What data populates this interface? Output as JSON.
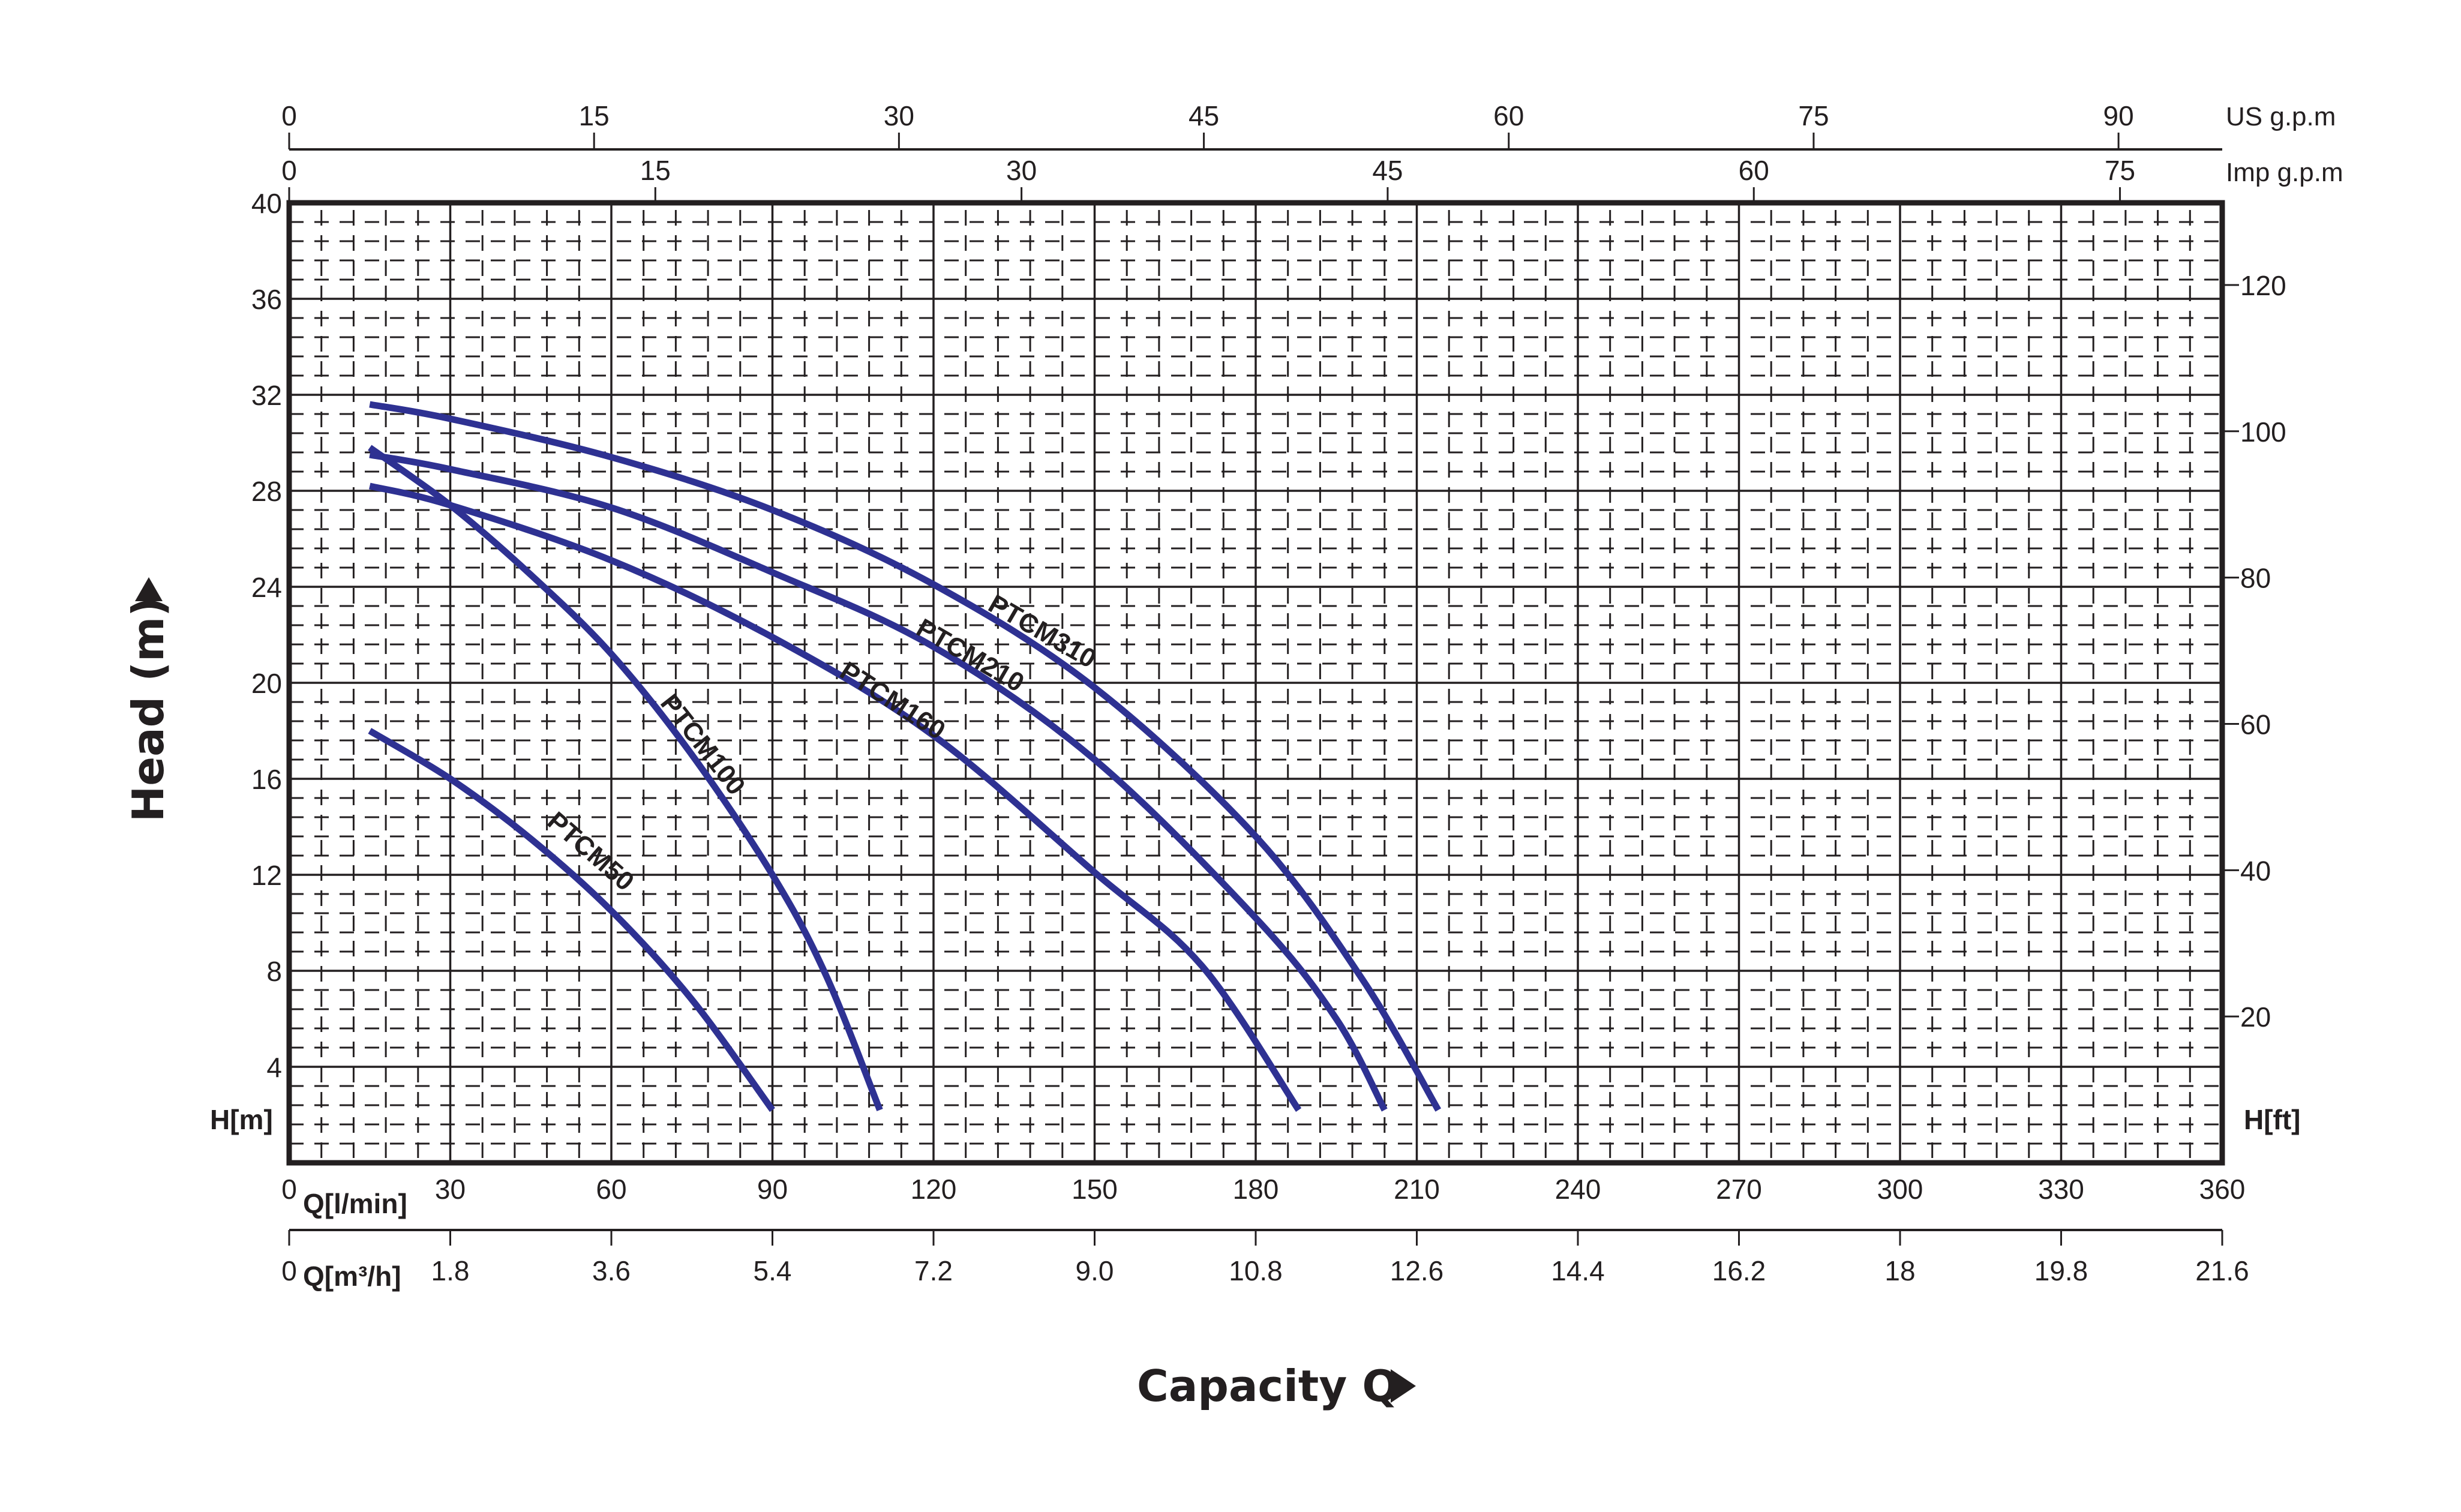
{
  "chart_data": {
    "type": "line",
    "title": "",
    "xlabel": "Capacity Q",
    "ylabel": "Head (m)",
    "x_unit_primary": "Q[l/min]",
    "x_unit_secondary": "Q[m³/h]",
    "y_unit_left": "H[m]",
    "y_unit_right": "H[ft]",
    "top_axis_1_unit": "US g.p.m",
    "top_axis_2_unit": "Imp g.p.m",
    "xlim": [
      0,
      360
    ],
    "ylim": [
      0,
      40
    ],
    "grid": true,
    "legend": "inline curve labels",
    "x_ticks_lmin": [
      "0",
      "30",
      "60",
      "90",
      "120",
      "150",
      "180",
      "210",
      "240",
      "270",
      "300",
      "330",
      "360"
    ],
    "x_ticks_m3h": [
      "0",
      "1.8",
      "3.6",
      "5.4",
      "7.2",
      "9.0",
      "10.8",
      "12.6",
      "14.4",
      "16.2",
      "18",
      "19.8",
      "21.6"
    ],
    "y_ticks_m": [
      "4",
      "8",
      "12",
      "16",
      "20",
      "24",
      "28",
      "32",
      "36",
      "40"
    ],
    "y_ticks_ft": [
      "20",
      "40",
      "60",
      "80",
      "100",
      "120"
    ],
    "top_ticks_us_gpm": [
      "0",
      "15",
      "30",
      "45",
      "60",
      "75",
      "90"
    ],
    "top_ticks_imp_gpm": [
      "0",
      "15",
      "30",
      "45",
      "60",
      "75"
    ],
    "series_color": "#2e3192",
    "series": [
      {
        "name": "PTCM50",
        "x": [
          15,
          30,
          45,
          60,
          75,
          90
        ],
        "y": [
          18.0,
          16.0,
          13.5,
          10.5,
          6.8,
          2.2
        ]
      },
      {
        "name": "PTCM100",
        "x": [
          15,
          30,
          45,
          60,
          75,
          90,
          100,
          110
        ],
        "y": [
          29.8,
          27.4,
          24.5,
          21.2,
          17.0,
          12.0,
          7.8,
          2.2
        ]
      },
      {
        "name": "PTCM160",
        "x": [
          15,
          30,
          60,
          90,
          120,
          150,
          170,
          188
        ],
        "y": [
          28.2,
          27.4,
          25.1,
          21.9,
          17.8,
          12.1,
          8.2,
          2.2
        ]
      },
      {
        "name": "PTCM210",
        "x": [
          15,
          30,
          60,
          90,
          120,
          150,
          180,
          195,
          204
        ],
        "y": [
          29.5,
          28.9,
          27.3,
          24.6,
          21.5,
          16.8,
          10.2,
          6.0,
          2.2
        ]
      },
      {
        "name": "PTCM310",
        "x": [
          15,
          30,
          60,
          90,
          120,
          150,
          180,
          200,
          214
        ],
        "y": [
          31.6,
          31.0,
          29.4,
          27.2,
          24.1,
          19.8,
          13.6,
          7.6,
          2.2
        ]
      }
    ]
  },
  "labels": {
    "x_title": "Capacity Q",
    "y_title": "Head (m)",
    "h_m": "H[m]",
    "h_ft": "H[ft]",
    "q_lmin": "Q[l/min]",
    "q_m3h": "Q[m³/h]",
    "us_gpm": "US g.p.m",
    "imp_gpm": "Imp g.p.m"
  },
  "curve_labels": [
    {
      "text": "PTCM50",
      "x": 975,
      "y": 1430,
      "angle": 41
    },
    {
      "text": "PTCM100",
      "x": 1160,
      "y": 1250,
      "angle": 52
    },
    {
      "text": "PTCM160",
      "x": 1480,
      "y": 1180,
      "angle": 33
    },
    {
      "text": "PTCM210",
      "x": 1610,
      "y": 1105,
      "angle": 30
    },
    {
      "text": "PTCM310",
      "x": 1730,
      "y": 1065,
      "angle": 30
    }
  ]
}
